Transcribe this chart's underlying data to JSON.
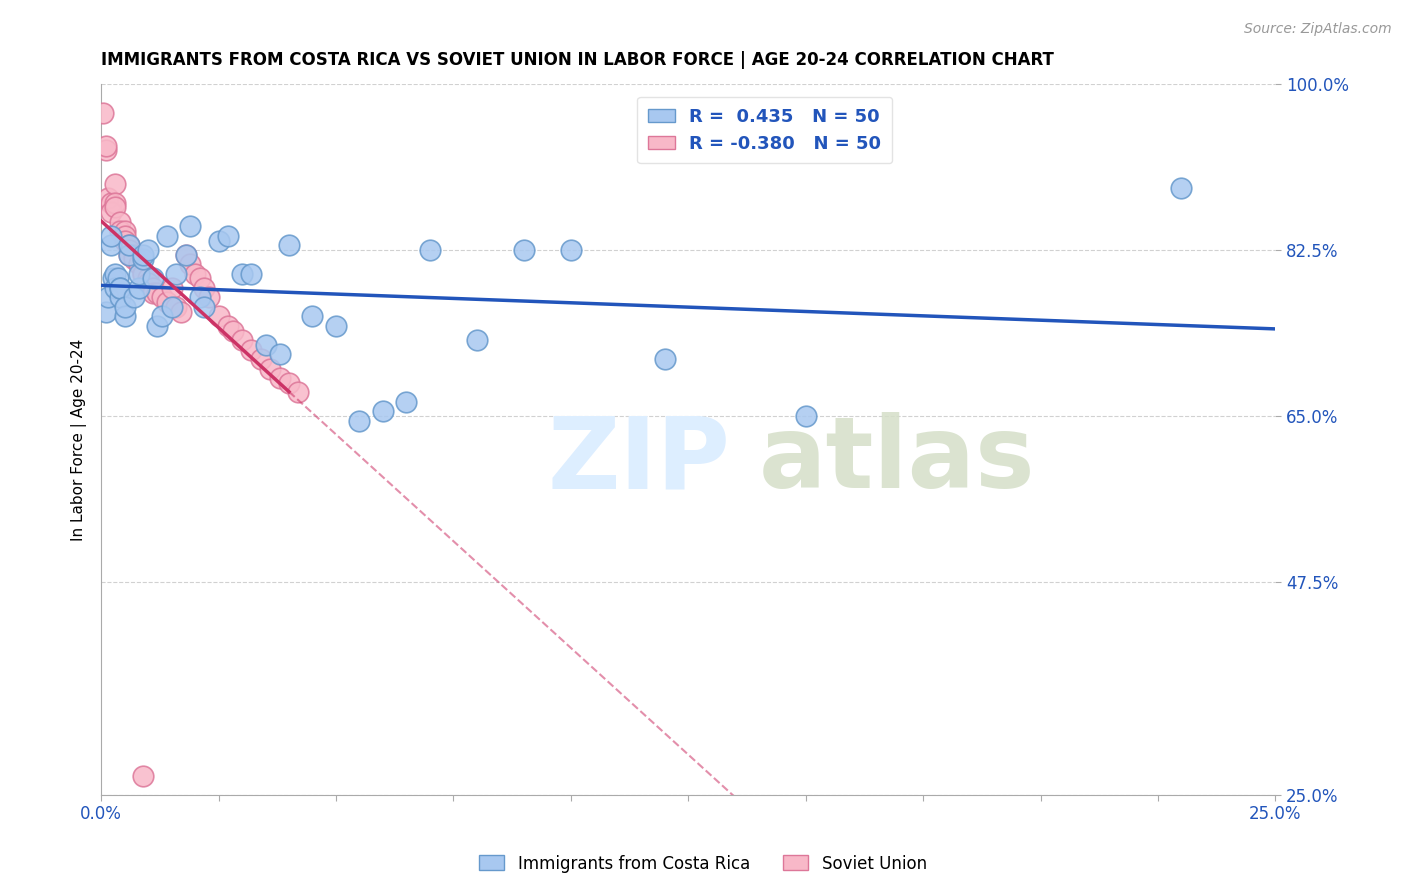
{
  "title": "IMMIGRANTS FROM COSTA RICA VS SOVIET UNION IN LABOR FORCE | AGE 20-24 CORRELATION CHART",
  "source": "Source: ZipAtlas.com",
  "ylabel": "In Labor Force | Age 20-24",
  "xlim": [
    0.0,
    0.25
  ],
  "ylim": [
    0.25,
    1.0
  ],
  "yticks": [
    0.25,
    0.475,
    0.65,
    0.825,
    1.0
  ],
  "ytick_labels": [
    "25.0%",
    "47.5%",
    "65.0%",
    "82.5%",
    "100.0%"
  ],
  "xticks": [
    0.0,
    0.025,
    0.05,
    0.075,
    0.1,
    0.125,
    0.15,
    0.175,
    0.2,
    0.225,
    0.25
  ],
  "xtick_labels_show": [
    "0.0%",
    "",
    "",
    "",
    "",
    "",
    "",
    "",
    "",
    "",
    "25.0%"
  ],
  "costa_rica_color": "#a8c8f0",
  "costa_rica_edge": "#6699cc",
  "soviet_color": "#f8b8c8",
  "soviet_edge": "#dd7799",
  "trend_blue": "#2255bb",
  "trend_pink": "#cc3366",
  "legend_r1": "R =  0.435",
  "legend_n1": "N = 50",
  "legend_r2": "R = -0.380",
  "legend_n2": "N = 50",
  "costa_rica_x": [
    0.001,
    0.0015,
    0.002,
    0.002,
    0.0025,
    0.003,
    0.003,
    0.0035,
    0.004,
    0.004,
    0.004,
    0.005,
    0.005,
    0.006,
    0.006,
    0.007,
    0.008,
    0.008,
    0.009,
    0.009,
    0.01,
    0.011,
    0.012,
    0.013,
    0.014,
    0.015,
    0.016,
    0.018,
    0.019,
    0.021,
    0.022,
    0.025,
    0.027,
    0.03,
    0.032,
    0.035,
    0.038,
    0.04,
    0.045,
    0.05,
    0.055,
    0.06,
    0.065,
    0.07,
    0.08,
    0.09,
    0.1,
    0.12,
    0.15,
    0.23
  ],
  "costa_rica_y": [
    0.76,
    0.775,
    0.83,
    0.84,
    0.795,
    0.8,
    0.785,
    0.795,
    0.775,
    0.785,
    0.785,
    0.755,
    0.765,
    0.82,
    0.83,
    0.775,
    0.785,
    0.8,
    0.815,
    0.82,
    0.825,
    0.795,
    0.745,
    0.755,
    0.84,
    0.765,
    0.8,
    0.82,
    0.85,
    0.775,
    0.765,
    0.835,
    0.84,
    0.8,
    0.8,
    0.725,
    0.715,
    0.83,
    0.755,
    0.745,
    0.645,
    0.655,
    0.665,
    0.825,
    0.73,
    0.825,
    0.825,
    0.71,
    0.65,
    0.89
  ],
  "soviet_x": [
    0.0005,
    0.001,
    0.001,
    0.0015,
    0.002,
    0.002,
    0.003,
    0.003,
    0.003,
    0.004,
    0.004,
    0.005,
    0.005,
    0.005,
    0.006,
    0.006,
    0.006,
    0.007,
    0.007,
    0.008,
    0.008,
    0.009,
    0.009,
    0.01,
    0.01,
    0.011,
    0.011,
    0.012,
    0.013,
    0.014,
    0.015,
    0.016,
    0.017,
    0.018,
    0.019,
    0.02,
    0.021,
    0.022,
    0.023,
    0.025,
    0.027,
    0.028,
    0.03,
    0.032,
    0.034,
    0.036,
    0.038,
    0.04,
    0.042,
    0.009
  ],
  "soviet_y": [
    0.97,
    0.93,
    0.935,
    0.88,
    0.875,
    0.865,
    0.895,
    0.875,
    0.87,
    0.855,
    0.845,
    0.845,
    0.84,
    0.835,
    0.83,
    0.825,
    0.82,
    0.82,
    0.815,
    0.81,
    0.81,
    0.8,
    0.8,
    0.795,
    0.79,
    0.785,
    0.78,
    0.78,
    0.775,
    0.77,
    0.785,
    0.765,
    0.76,
    0.82,
    0.81,
    0.8,
    0.795,
    0.785,
    0.775,
    0.755,
    0.745,
    0.74,
    0.73,
    0.72,
    0.71,
    0.7,
    0.69,
    0.685,
    0.675,
    0.27
  ]
}
